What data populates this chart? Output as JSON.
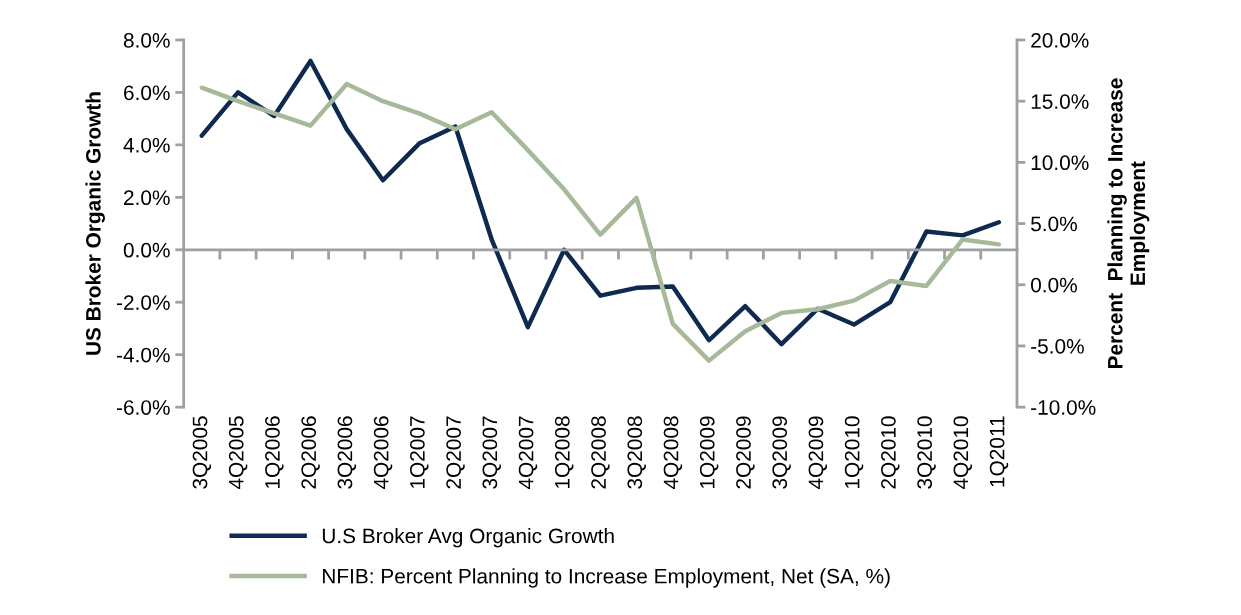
{
  "chart_data": {
    "type": "line",
    "ylabel": "US Broker Organic Growth",
    "y2label": "Percent  Planning to Increase\nEmployment",
    "categories": [
      "3Q2005",
      "4Q2005",
      "1Q2006",
      "2Q2006",
      "3Q2006",
      "4Q2006",
      "1Q2007",
      "2Q2007",
      "3Q2007",
      "4Q2007",
      "1Q2008",
      "2Q2008",
      "3Q2008",
      "4Q2008",
      "1Q2009",
      "2Q2009",
      "3Q2009",
      "4Q2009",
      "1Q2010",
      "2Q2010",
      "3Q2010",
      "4Q2010",
      "1Q2011"
    ],
    "series": [
      {
        "name": "U.S Broker Avg Organic Growth",
        "color": "#0e2a50",
        "values": [
          4.35,
          6.0,
          5.1,
          7.2,
          4.6,
          2.65,
          4.05,
          4.7,
          0.4,
          -2.95,
          0.0,
          -1.75,
          -1.45,
          -1.4,
          -3.45,
          -2.15,
          -3.6,
          -2.25,
          -2.85,
          -2.0,
          0.7,
          0.55,
          1.05
        ]
      },
      {
        "name": "NFIB: Percent Planning to Increase Employment, Net (SA, %)",
        "color": "#a6b99a",
        "axis": "y2",
        "values": [
          16.1,
          15.0,
          14.0,
          13.0,
          16.4,
          15.0,
          14.0,
          12.7,
          14.1,
          11.0,
          7.8,
          4.1,
          7.1,
          -3.2,
          -6.2,
          -3.8,
          -2.3,
          -2.0,
          -1.3,
          0.3,
          -0.1,
          3.7,
          3.3
        ]
      }
    ],
    "ylim": [
      -6,
      8
    ],
    "yticks": [
      {
        "value": -6,
        "label": "-6.0%"
      },
      {
        "value": -4,
        "label": "-4.0%"
      },
      {
        "value": -2,
        "label": "-2.0%"
      },
      {
        "value": 0,
        "label": "0.0%"
      },
      {
        "value": 2,
        "label": "2.0%"
      },
      {
        "value": 4,
        "label": "4.0%"
      },
      {
        "value": 6,
        "label": "6.0%"
      },
      {
        "value": 8,
        "label": "8.0%"
      }
    ],
    "y2lim": [
      -10,
      20
    ],
    "y2ticks": [
      {
        "value": -10,
        "label": "-10.0%"
      },
      {
        "value": -5,
        "label": "-5.0%"
      },
      {
        "value": 0,
        "label": "0.0%"
      },
      {
        "value": 5,
        "label": "5.0%"
      },
      {
        "value": 10,
        "label": "10.0%"
      },
      {
        "value": 15,
        "label": "15.0%"
      },
      {
        "value": 20,
        "label": "20.0%"
      }
    ],
    "legend": "bottom",
    "marker": "none",
    "line_style": "solid"
  }
}
